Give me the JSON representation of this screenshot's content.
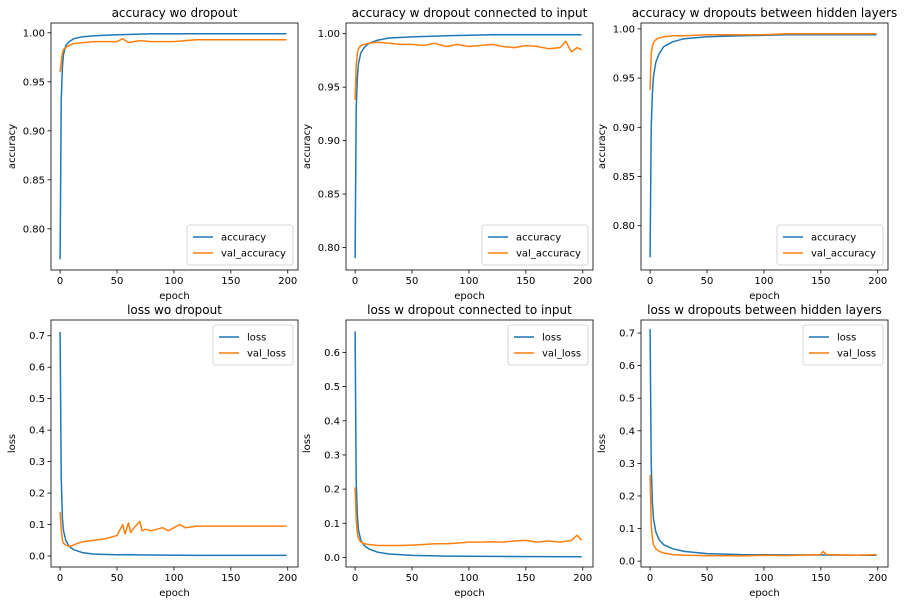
{
  "chart_data": [
    {
      "type": "line",
      "title": "accuracy wo dropout",
      "xlabel": "epoch",
      "ylabel": "accuracy",
      "xlim": [
        -8,
        209
      ],
      "ylim": [
        0.758,
        1.01
      ],
      "xticks": [
        0,
        50,
        100,
        150,
        200
      ],
      "yticks": [
        0.8,
        0.85,
        0.9,
        0.95,
        1.0
      ],
      "ytick_labels": [
        "0.80",
        "0.85",
        "0.90",
        "0.95",
        "1.00"
      ],
      "legend": "lower-right",
      "series": [
        {
          "name": "accuracy",
          "color": "#1f77b4",
          "epochs": [
            0,
            1,
            2,
            3,
            5,
            8,
            12,
            20,
            30,
            50,
            80,
            120,
            199
          ],
          "values": [
            0.769,
            0.93,
            0.965,
            0.978,
            0.987,
            0.991,
            0.994,
            0.996,
            0.997,
            0.998,
            0.999,
            0.999,
            0.999
          ]
        },
        {
          "name": "val_accuracy",
          "color": "#ff7f0e",
          "epochs": [
            0,
            1,
            2,
            3,
            5,
            8,
            12,
            20,
            30,
            40,
            50,
            55,
            60,
            70,
            80,
            100,
            110,
            120,
            150,
            199
          ],
          "values": [
            0.96,
            0.97,
            0.979,
            0.983,
            0.985,
            0.987,
            0.989,
            0.99,
            0.991,
            0.991,
            0.991,
            0.994,
            0.99,
            0.992,
            0.991,
            0.991,
            0.992,
            0.993,
            0.993,
            0.993
          ]
        }
      ]
    },
    {
      "type": "line",
      "title": "accuracy w dropout connected to input",
      "xlabel": "epoch",
      "ylabel": "accuracy",
      "xlim": [
        -8,
        209
      ],
      "ylim": [
        0.779,
        1.01
      ],
      "xticks": [
        0,
        50,
        100,
        150,
        200
      ],
      "yticks": [
        0.8,
        0.85,
        0.9,
        0.95,
        1.0
      ],
      "ytick_labels": [
        "0.80",
        "0.85",
        "0.90",
        "0.95",
        "1.00"
      ],
      "legend": "lower-right",
      "series": [
        {
          "name": "accuracy",
          "color": "#1f77b4",
          "epochs": [
            0,
            1,
            2,
            3,
            5,
            8,
            12,
            20,
            30,
            50,
            80,
            120,
            199
          ],
          "values": [
            0.79,
            0.93,
            0.96,
            0.972,
            0.982,
            0.987,
            0.991,
            0.994,
            0.996,
            0.997,
            0.998,
            0.999,
            0.999
          ]
        },
        {
          "name": "val_accuracy",
          "color": "#ff7f0e",
          "epochs": [
            0,
            1,
            2,
            3,
            5,
            8,
            12,
            20,
            30,
            40,
            50,
            60,
            70,
            80,
            90,
            100,
            110,
            120,
            130,
            140,
            150,
            160,
            170,
            180,
            185,
            190,
            195,
            199
          ],
          "values": [
            0.938,
            0.97,
            0.982,
            0.986,
            0.989,
            0.99,
            0.991,
            0.992,
            0.991,
            0.99,
            0.99,
            0.989,
            0.991,
            0.988,
            0.99,
            0.988,
            0.989,
            0.99,
            0.988,
            0.987,
            0.989,
            0.988,
            0.986,
            0.987,
            0.993,
            0.983,
            0.987,
            0.985
          ]
        }
      ]
    },
    {
      "type": "line",
      "title": "accuracy w dropouts between hidden layers",
      "xlabel": "epoch",
      "ylabel": "accuracy",
      "xlim": [
        -8,
        209
      ],
      "ylim": [
        0.755,
        1.006
      ],
      "xticks": [
        0,
        50,
        100,
        150,
        200
      ],
      "yticks": [
        0.8,
        0.85,
        0.9,
        0.95,
        1.0
      ],
      "ytick_labels": [
        "0.80",
        "0.85",
        "0.90",
        "0.95",
        "1.00"
      ],
      "legend": "lower-right",
      "series": [
        {
          "name": "accuracy",
          "color": "#1f77b4",
          "epochs": [
            0,
            1,
            2,
            3,
            5,
            8,
            12,
            20,
            30,
            50,
            80,
            120,
            199
          ],
          "values": [
            0.768,
            0.9,
            0.935,
            0.952,
            0.966,
            0.975,
            0.982,
            0.987,
            0.99,
            0.992,
            0.993,
            0.994,
            0.994
          ]
        },
        {
          "name": "val_accuracy",
          "color": "#ff7f0e",
          "epochs": [
            0,
            1,
            2,
            3,
            5,
            8,
            12,
            20,
            30,
            50,
            80,
            100,
            120,
            150,
            180,
            199
          ],
          "values": [
            0.938,
            0.975,
            0.982,
            0.986,
            0.989,
            0.991,
            0.992,
            0.993,
            0.993,
            0.994,
            0.994,
            0.994,
            0.995,
            0.995,
            0.995,
            0.995
          ]
        }
      ]
    },
    {
      "type": "line",
      "title": "loss wo dropout",
      "xlabel": "epoch",
      "ylabel": "loss",
      "xlim": [
        -8,
        209
      ],
      "ylim": [
        -0.035,
        0.75
      ],
      "xticks": [
        0,
        50,
        100,
        150,
        200
      ],
      "yticks": [
        0.0,
        0.1,
        0.2,
        0.3,
        0.4,
        0.5,
        0.6,
        0.7
      ],
      "ytick_labels": [
        "0.0",
        "0.1",
        "0.2",
        "0.3",
        "0.4",
        "0.5",
        "0.6",
        "0.7"
      ],
      "legend": "upper-right",
      "series": [
        {
          "name": "loss",
          "color": "#1f77b4",
          "epochs": [
            0,
            1,
            2,
            3,
            5,
            8,
            12,
            20,
            30,
            50,
            80,
            120,
            199
          ],
          "values": [
            0.712,
            0.25,
            0.12,
            0.08,
            0.05,
            0.03,
            0.02,
            0.01,
            0.006,
            0.004,
            0.003,
            0.002,
            0.002
          ]
        },
        {
          "name": "val_loss",
          "color": "#ff7f0e",
          "epochs": [
            0,
            1,
            2,
            3,
            5,
            8,
            12,
            15,
            20,
            30,
            40,
            50,
            55,
            57,
            60,
            62,
            65,
            70,
            72,
            75,
            80,
            90,
            95,
            100,
            105,
            110,
            120,
            150,
            199
          ],
          "values": [
            0.14,
            0.085,
            0.05,
            0.04,
            0.035,
            0.03,
            0.035,
            0.04,
            0.045,
            0.05,
            0.055,
            0.065,
            0.1,
            0.07,
            0.105,
            0.075,
            0.09,
            0.11,
            0.08,
            0.085,
            0.08,
            0.09,
            0.08,
            0.09,
            0.1,
            0.09,
            0.095,
            0.095,
            0.095
          ]
        }
      ]
    },
    {
      "type": "line",
      "title": "loss w dropout connected to input",
      "xlabel": "epoch",
      "ylabel": "loss",
      "xlim": [
        -8,
        209
      ],
      "ylim": [
        -0.028,
        0.695
      ],
      "xticks": [
        0,
        50,
        100,
        150,
        200
      ],
      "yticks": [
        0.0,
        0.1,
        0.2,
        0.3,
        0.4,
        0.5,
        0.6
      ],
      "ytick_labels": [
        "0.0",
        "0.1",
        "0.2",
        "0.3",
        "0.4",
        "0.5",
        "0.6"
      ],
      "legend": "upper-right",
      "series": [
        {
          "name": "loss",
          "color": "#1f77b4",
          "epochs": [
            0,
            1,
            2,
            3,
            5,
            8,
            12,
            20,
            30,
            50,
            80,
            120,
            199
          ],
          "values": [
            0.662,
            0.22,
            0.12,
            0.08,
            0.05,
            0.035,
            0.025,
            0.015,
            0.01,
            0.006,
            0.004,
            0.003,
            0.002
          ]
        },
        {
          "name": "val_loss",
          "color": "#ff7f0e",
          "epochs": [
            0,
            1,
            2,
            3,
            5,
            8,
            12,
            20,
            30,
            40,
            50,
            60,
            70,
            80,
            90,
            100,
            110,
            120,
            130,
            140,
            150,
            160,
            170,
            180,
            190,
            195,
            199
          ],
          "values": [
            0.205,
            0.11,
            0.07,
            0.055,
            0.045,
            0.04,
            0.038,
            0.035,
            0.035,
            0.035,
            0.036,
            0.038,
            0.04,
            0.04,
            0.042,
            0.045,
            0.045,
            0.046,
            0.045,
            0.048,
            0.05,
            0.045,
            0.048,
            0.045,
            0.05,
            0.065,
            0.05
          ]
        }
      ]
    },
    {
      "type": "line",
      "title": "loss w dropouts between hidden layers",
      "xlabel": "epoch",
      "ylabel": "loss",
      "xlim": [
        -8,
        209
      ],
      "ylim": [
        -0.018,
        0.74
      ],
      "xticks": [
        0,
        50,
        100,
        150,
        200
      ],
      "yticks": [
        0.0,
        0.1,
        0.2,
        0.3,
        0.4,
        0.5,
        0.6,
        0.7
      ],
      "ytick_labels": [
        "0.0",
        "0.1",
        "0.2",
        "0.3",
        "0.4",
        "0.5",
        "0.6",
        "0.7"
      ],
      "legend": "upper-right",
      "series": [
        {
          "name": "loss",
          "color": "#1f77b4",
          "epochs": [
            0,
            1,
            2,
            3,
            5,
            8,
            12,
            20,
            30,
            50,
            80,
            120,
            199
          ],
          "values": [
            0.712,
            0.3,
            0.18,
            0.13,
            0.09,
            0.065,
            0.05,
            0.038,
            0.03,
            0.023,
            0.02,
            0.019,
            0.018
          ]
        },
        {
          "name": "val_loss",
          "color": "#ff7f0e",
          "epochs": [
            0,
            1,
            2,
            3,
            5,
            8,
            12,
            20,
            30,
            50,
            80,
            100,
            120,
            150,
            152,
            155,
            180,
            199
          ],
          "values": [
            0.265,
            0.11,
            0.07,
            0.05,
            0.038,
            0.03,
            0.025,
            0.02,
            0.018,
            0.017,
            0.016,
            0.018,
            0.017,
            0.02,
            0.03,
            0.02,
            0.018,
            0.02
          ]
        }
      ]
    }
  ]
}
